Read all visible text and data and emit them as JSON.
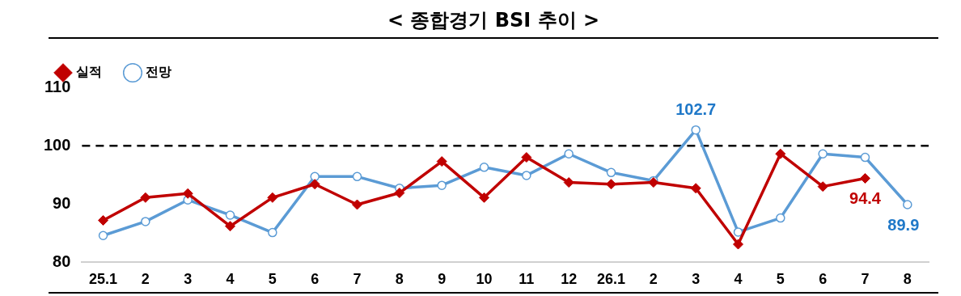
{
  "chart_data": {
    "type": "line",
    "title": "< 종합경기 BSI 추이 >",
    "categories": [
      "25.1",
      "2",
      "3",
      "4",
      "5",
      "6",
      "7",
      "8",
      "9",
      "10",
      "11",
      "12",
      "26.1",
      "2",
      "3",
      "4",
      "5",
      "6",
      "7",
      "8"
    ],
    "series": [
      {
        "name": "전망",
        "color": "#5b9bd5",
        "marker": "circle",
        "values": [
          84.6,
          87.0,
          90.7,
          88.1,
          85.1,
          94.7,
          94.7,
          92.7,
          93.2,
          96.3,
          94.9,
          98.6,
          95.4,
          94.0,
          102.7,
          85.2,
          87.6,
          98.6,
          98.0,
          89.9
        ],
        "value_labels": [
          null,
          null,
          null,
          null,
          null,
          null,
          null,
          null,
          null,
          null,
          null,
          null,
          null,
          null,
          "102.7",
          null,
          null,
          null,
          null,
          "89.9"
        ]
      },
      {
        "name": "실적",
        "color": "#c00000",
        "marker": "diamond",
        "values": [
          87.2,
          91.1,
          91.8,
          86.2,
          91.1,
          93.4,
          89.9,
          91.9,
          97.3,
          91.1,
          98.0,
          93.7,
          93.4,
          93.7,
          92.7,
          83.1,
          98.6,
          93.0,
          94.4,
          null
        ],
        "value_labels": [
          null,
          null,
          null,
          null,
          null,
          null,
          null,
          null,
          null,
          null,
          null,
          null,
          null,
          null,
          null,
          null,
          null,
          null,
          "94.4",
          null
        ]
      }
    ],
    "ylim": [
      80,
      110
    ],
    "yticks": [
      80,
      90,
      100,
      110
    ],
    "grid": false,
    "legend": "top left",
    "ref_lines": [
      {
        "axis": "y",
        "value": 100,
        "line_style": "dashed",
        "color": "#000000"
      }
    ]
  }
}
